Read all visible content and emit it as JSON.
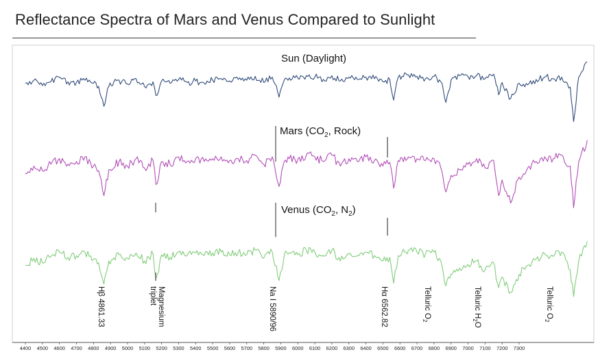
{
  "title": "Reflectance Spectra of Mars and Venus Compared to Sunlight",
  "chart_data": {
    "type": "line",
    "title": "Reflectance Spectra of Mars and Venus Compared to Sunlight",
    "xlabel": "",
    "ylabel": "",
    "xlim": [
      4400,
      7700
    ],
    "x_ticks": [
      4400,
      4500,
      4600,
      4700,
      4800,
      4900,
      5000,
      5100,
      5200,
      5300,
      5400,
      5500,
      5600,
      5700,
      5800,
      5900,
      6000,
      6100,
      6200,
      6300,
      6400,
      6500,
      6600,
      6700,
      6800,
      6900,
      7000,
      7100,
      7200,
      7300
    ],
    "grid": false,
    "legend": "none",
    "series": [
      {
        "name": "Sun (Daylight)",
        "label_main": "Sun (Daylight)",
        "label_sub": "",
        "label_tail": "",
        "color": "#2e4a78",
        "x": [
          4400,
          4450,
          4500,
          4550,
          4600,
          4650,
          4700,
          4750,
          4800,
          4830,
          4861,
          4890,
          4950,
          5000,
          5050,
          5100,
          5150,
          5167,
          5183,
          5200,
          5250,
          5300,
          5350,
          5400,
          5450,
          5500,
          5550,
          5600,
          5650,
          5700,
          5750,
          5800,
          5850,
          5890,
          5920,
          5950,
          6000,
          6050,
          6100,
          6150,
          6200,
          6250,
          6300,
          6350,
          6400,
          6450,
          6500,
          6540,
          6563,
          6590,
          6650,
          6700,
          6750,
          6800,
          6840,
          6870,
          6900,
          6950,
          7000,
          7050,
          7100,
          7150,
          7180,
          7200,
          7250,
          7300,
          7350,
          7400,
          7450,
          7500,
          7550,
          7600,
          7620,
          7650,
          7700
        ],
        "y": [
          0.7,
          0.74,
          0.67,
          0.72,
          0.78,
          0.72,
          0.71,
          0.74,
          0.7,
          0.66,
          0.4,
          0.66,
          0.74,
          0.69,
          0.76,
          0.66,
          0.72,
          0.54,
          0.6,
          0.73,
          0.7,
          0.75,
          0.71,
          0.73,
          0.7,
          0.74,
          0.76,
          0.73,
          0.75,
          0.74,
          0.79,
          0.71,
          0.78,
          0.52,
          0.74,
          0.77,
          0.77,
          0.8,
          0.78,
          0.75,
          0.8,
          0.73,
          0.78,
          0.75,
          0.78,
          0.76,
          0.72,
          0.75,
          0.48,
          0.78,
          0.81,
          0.79,
          0.76,
          0.79,
          0.72,
          0.45,
          0.74,
          0.8,
          0.79,
          0.8,
          0.76,
          0.82,
          0.55,
          0.71,
          0.5,
          0.7,
          0.68,
          0.75,
          0.78,
          0.76,
          0.78,
          0.65,
          0.2,
          0.78,
          0.98
        ]
      },
      {
        "name": "Mars (CO2, Rock)",
        "label_main": "Mars  (CO",
        "label_sub": "2",
        "label_tail": ", Rock)",
        "color": "#b04cb6",
        "x": [
          4400,
          4450,
          4500,
          4550,
          4600,
          4650,
          4700,
          4750,
          4800,
          4830,
          4861,
          4890,
          4950,
          5000,
          5050,
          5100,
          5150,
          5167,
          5183,
          5200,
          5250,
          5300,
          5350,
          5400,
          5450,
          5500,
          5550,
          5600,
          5650,
          5700,
          5750,
          5800,
          5850,
          5890,
          5920,
          5950,
          6000,
          6050,
          6100,
          6150,
          6200,
          6250,
          6300,
          6350,
          6400,
          6450,
          6500,
          6540,
          6563,
          6590,
          6650,
          6700,
          6750,
          6800,
          6840,
          6870,
          6900,
          6950,
          7000,
          7050,
          7100,
          7150,
          7180,
          7200,
          7250,
          7300,
          7350,
          7400,
          7450,
          7500,
          7550,
          7600,
          7620,
          7650,
          7700
        ],
        "y": [
          0.42,
          0.5,
          0.45,
          0.52,
          0.58,
          0.52,
          0.55,
          0.6,
          0.5,
          0.45,
          0.18,
          0.46,
          0.55,
          0.5,
          0.58,
          0.48,
          0.56,
          0.3,
          0.38,
          0.55,
          0.52,
          0.6,
          0.55,
          0.58,
          0.55,
          0.58,
          0.6,
          0.56,
          0.58,
          0.56,
          0.62,
          0.52,
          0.6,
          0.28,
          0.55,
          0.58,
          0.57,
          0.62,
          0.6,
          0.55,
          0.62,
          0.5,
          0.58,
          0.55,
          0.6,
          0.56,
          0.5,
          0.54,
          0.26,
          0.56,
          0.6,
          0.58,
          0.56,
          0.58,
          0.48,
          0.22,
          0.4,
          0.46,
          0.52,
          0.58,
          0.48,
          0.56,
          0.18,
          0.35,
          0.1,
          0.38,
          0.48,
          0.55,
          0.6,
          0.58,
          0.62,
          0.5,
          0.05,
          0.55,
          0.78
        ]
      },
      {
        "name": "Venus (CO2, N2)",
        "label_main": "Venus (CO",
        "label_sub": "2",
        "label_tail": ", N",
        "label_sub2": "2",
        "label_tail2": ")",
        "color": "#7fcc78",
        "x": [
          4400,
          4450,
          4500,
          4550,
          4600,
          4650,
          4700,
          4750,
          4800,
          4830,
          4861,
          4890,
          4950,
          5000,
          5050,
          5100,
          5150,
          5167,
          5183,
          5200,
          5250,
          5300,
          5350,
          5400,
          5450,
          5500,
          5550,
          5600,
          5650,
          5700,
          5750,
          5800,
          5850,
          5890,
          5920,
          5950,
          6000,
          6050,
          6100,
          6150,
          6200,
          6250,
          6300,
          6350,
          6400,
          6450,
          6500,
          6540,
          6563,
          6590,
          6650,
          6700,
          6750,
          6800,
          6840,
          6870,
          6900,
          6950,
          7000,
          7050,
          7100,
          7150,
          7180,
          7200,
          7250,
          7300,
          7350,
          7400,
          7450,
          7500,
          7550,
          7600,
          7620,
          7650,
          7700
        ],
        "y": [
          0.25,
          0.33,
          0.28,
          0.35,
          0.4,
          0.34,
          0.36,
          0.4,
          0.32,
          0.28,
          0.04,
          0.3,
          0.37,
          0.33,
          0.39,
          0.3,
          0.38,
          0.1,
          0.18,
          0.37,
          0.34,
          0.4,
          0.36,
          0.39,
          0.36,
          0.39,
          0.4,
          0.37,
          0.39,
          0.37,
          0.42,
          0.33,
          0.4,
          0.08,
          0.36,
          0.39,
          0.37,
          0.42,
          0.4,
          0.36,
          0.42,
          0.3,
          0.38,
          0.36,
          0.4,
          0.36,
          0.3,
          0.34,
          0.05,
          0.36,
          0.42,
          0.4,
          0.38,
          0.4,
          0.3,
          0.02,
          0.15,
          0.22,
          0.26,
          0.3,
          0.2,
          0.28,
          0.0,
          0.12,
          -0.05,
          0.15,
          0.25,
          0.32,
          0.38,
          0.35,
          0.4,
          0.2,
          -0.1,
          0.3,
          0.52
        ]
      }
    ],
    "annotations": [
      {
        "x": 4861,
        "text": "Hβ 4861.33"
      },
      {
        "x": 5175,
        "text": "Magnesium triplet"
      },
      {
        "x": 5893,
        "text": "Na I 5890/96"
      },
      {
        "x": 6563,
        "text": "Hα 6562.82"
      },
      {
        "x": 6870,
        "text": "Telluric O2"
      },
      {
        "x": 7180,
        "text": "Telluric H2O"
      },
      {
        "x": 7620,
        "text": "Telluric O2"
      }
    ]
  }
}
